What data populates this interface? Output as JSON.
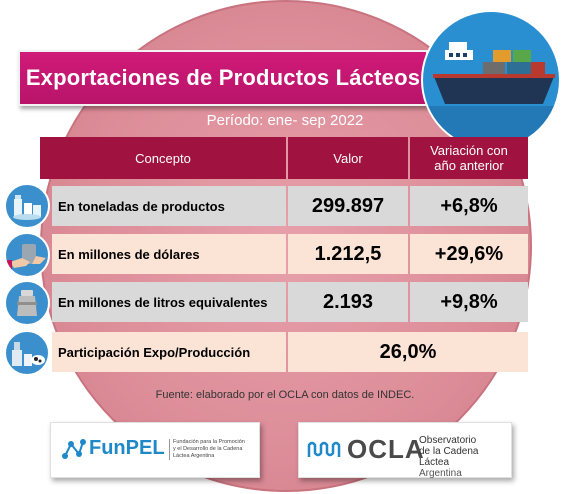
{
  "title": "Exportaciones de Productos Lácteos",
  "period": "Período: ene- sep 2022",
  "table": {
    "headers": {
      "concepto": "Concepto",
      "valor": "Valor",
      "variacion_l1": "Variación con",
      "variacion_l2": "año anterior"
    },
    "rows": [
      {
        "label": "En toneladas de productos",
        "value": "299.897",
        "change": "+6,8%",
        "icon": "milk-products-icon"
      },
      {
        "label": "En millones de dólares",
        "value": "1.212,5",
        "change": "+29,6%",
        "icon": "money-hand-icon"
      },
      {
        "label": "En millones de litros equivalentes",
        "value": "2.193",
        "change": "+9,8%",
        "icon": "milk-can-icon"
      },
      {
        "label": "Participación Expo/Producción",
        "value": "26,0%",
        "icon": "dairy-farm-icon"
      }
    ]
  },
  "source": "Fuente: elaborado por el OCLA con datos de INDEC.",
  "logos": {
    "funpel_name": "FunPEL",
    "funpel_desc_l1": "Fundación para la Promoción",
    "funpel_desc_l2": "y el Desarrollo de la Cadena",
    "funpel_desc_l3": "Láctea Argentina",
    "ocla_name": "OCLA",
    "ocla_desc_l1": "Observatorio",
    "ocla_desc_l2": "de la Cadena Láctea",
    "ocla_desc_l3": "Argentina"
  },
  "colors": {
    "title_bg": "#c8166f",
    "header_bg": "#a0123f",
    "circle_bg": "#dc8d98",
    "icon_blue": "#3a8fcc"
  }
}
